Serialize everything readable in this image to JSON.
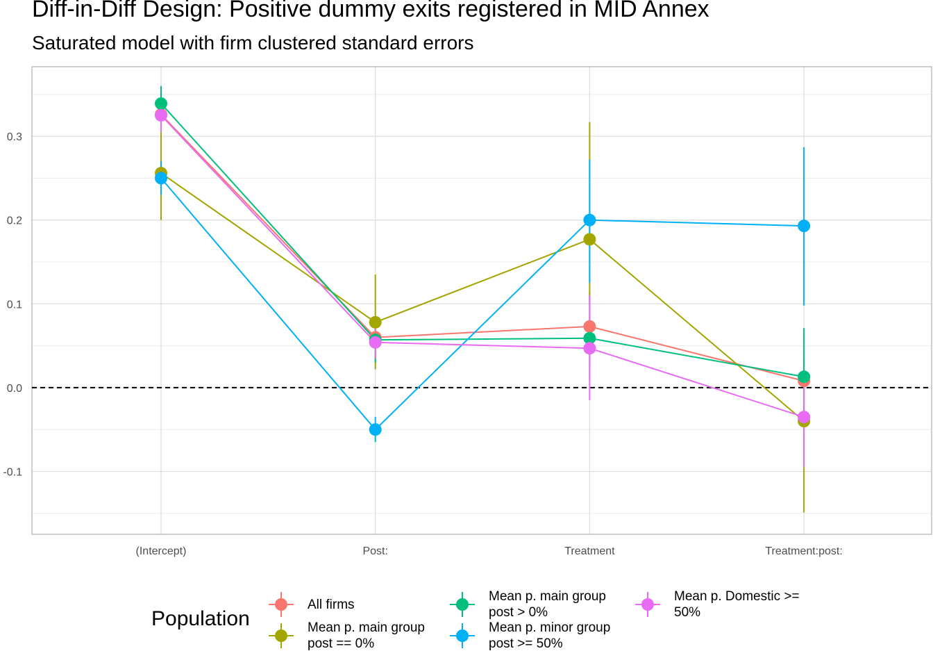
{
  "title": "Diff-in-Diff Design: Positive dummy exits registered in MID Annex",
  "subtitle": "Saturated model with firm clustered standard errors",
  "legend": {
    "title": "Population"
  },
  "chart_data": {
    "type": "line",
    "title": "Diff-in-Diff Design: Positive dummy exits registered in MID Annex",
    "subtitle": "Saturated model with firm clustered standard errors",
    "xlabel": "",
    "ylabel": "",
    "categories": [
      "(Intercept)",
      "Post:",
      "Treatment",
      "Treatment:post:"
    ],
    "ylim": [
      -0.175,
      0.383
    ],
    "yticks": [
      -0.1,
      0.0,
      0.1,
      0.2,
      0.3
    ],
    "ytick_labels": [
      "-0.1",
      "0.0",
      "0.1",
      "0.2",
      "0.3"
    ],
    "reference_line": {
      "y": 0,
      "style": "dashed"
    },
    "grid": true,
    "legend_position": "bottom",
    "series": [
      {
        "name": "All firms",
        "color": "#F8766D",
        "values": [
          0.326,
          0.06,
          0.073,
          0.008
        ],
        "lower": [
          0.305,
          0.04,
          0.03,
          -0.02
        ],
        "upper": [
          0.347,
          0.08,
          0.115,
          0.035
        ]
      },
      {
        "name": "Mean p. main group\npost == 0%",
        "color": "#A3A500",
        "values": [
          0.256,
          0.078,
          0.177,
          -0.04
        ],
        "lower": [
          0.2,
          0.022,
          0.1,
          -0.149
        ],
        "upper": [
          0.312,
          0.135,
          0.317,
          0.02
        ]
      },
      {
        "name": "Mean p. main group\npost > 0%",
        "color": "#00BF7D",
        "values": [
          0.339,
          0.057,
          0.059,
          0.013
        ],
        "lower": [
          0.318,
          0.03,
          0.01,
          -0.045
        ],
        "upper": [
          0.36,
          0.08,
          0.11,
          0.071
        ]
      },
      {
        "name": "Mean p. minor group\npost >= 50%",
        "color": "#00B0F6",
        "values": [
          0.25,
          -0.05,
          0.2,
          0.193
        ],
        "lower": [
          0.23,
          -0.065,
          0.125,
          0.098
        ],
        "upper": [
          0.27,
          -0.035,
          0.272,
          0.287
        ]
      },
      {
        "name": "Mean p. Domestic >=\n50%",
        "color": "#E76BF3",
        "values": [
          0.325,
          0.054,
          0.047,
          -0.035
        ],
        "lower": [
          0.305,
          0.035,
          -0.015,
          -0.095
        ],
        "upper": [
          0.345,
          0.075,
          0.11,
          0.02
        ]
      }
    ]
  }
}
